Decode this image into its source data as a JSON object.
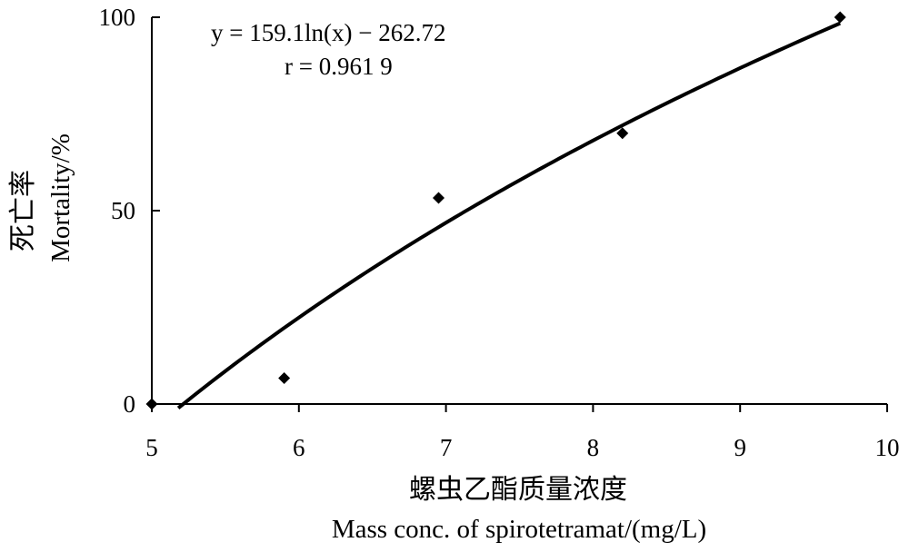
{
  "chart_data": {
    "type": "scatter",
    "x_ticks": [
      "5",
      "6",
      "7",
      "8",
      "9",
      "10"
    ],
    "y_ticks": [
      "0",
      "50",
      "100"
    ],
    "xlim": [
      5,
      10
    ],
    "ylim": [
      0,
      100
    ],
    "grid": false,
    "xlabel_cn": "螺虫乙酯质量浓度",
    "xlabel_en": "Mass conc. of spirotetramat/(mg/L)",
    "ylabel_cn": "死亡率",
    "ylabel_en": "Mortality/%",
    "equation": "y = 159.1ln(x) − 262.72",
    "r_value": "r = 0.961 9",
    "series": [
      {
        "points": [
          {
            "x": 5.0,
            "y": 0
          },
          {
            "x": 5.9,
            "y": 6.7
          },
          {
            "x": 6.95,
            "y": 53.3
          },
          {
            "x": 8.2,
            "y": 70.0
          },
          {
            "x": 9.68,
            "y": 100
          }
        ]
      }
    ],
    "fit": {
      "a": 159.1,
      "b": -262.72,
      "x_from": 5.18,
      "x_to": 9.68
    }
  }
}
